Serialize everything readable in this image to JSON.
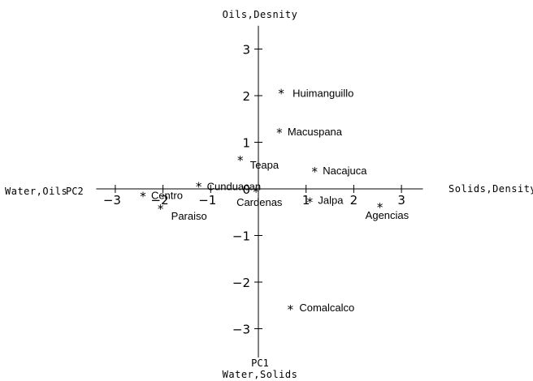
{
  "chart_data": {
    "type": "scatter",
    "xlabel": "PC2",
    "ylabel": "PC1",
    "xlim": [
      -3.4,
      3.45
    ],
    "ylim": [
      -3.6,
      3.5
    ],
    "xticks": [
      -3,
      -2,
      -1,
      1,
      2,
      3
    ],
    "xtick_labels": [
      "−3",
      "−2",
      "−1",
      "1",
      "2",
      "3"
    ],
    "yticks": [
      -3,
      -2,
      -1,
      1,
      2,
      3
    ],
    "ytick_labels": [
      "−3",
      "−2",
      "−1",
      "1",
      "2",
      "3"
    ],
    "origin_label": "0",
    "direction_labels": {
      "left": "Water,Oils",
      "right": "Solids,Density",
      "top": "Oils,Desnity",
      "bottom": "Water,Solids"
    },
    "points": [
      {
        "label": "Huimanguillo",
        "x": 0.48,
        "y": 2.06
      },
      {
        "label": "Macuspana",
        "x": 0.44,
        "y": 1.22
      },
      {
        "label": "Teapa",
        "x": -0.38,
        "y": 0.63
      },
      {
        "label": "Nacajuca",
        "x": 1.18,
        "y": 0.38
      },
      {
        "label": "Cunduacan",
        "x": -1.25,
        "y": 0.06
      },
      {
        "label": "Centro",
        "x": -2.42,
        "y": -0.15
      },
      {
        "label": "Cardenas",
        "x": -0.05,
        "y": -0.05
      },
      {
        "label": "Paraiso",
        "x": -2.05,
        "y": -0.42
      },
      {
        "label": "Jalpa",
        "x": 1.08,
        "y": -0.27
      },
      {
        "label": "Agencias",
        "x": 2.55,
        "y": -0.38
      },
      {
        "label": "Comalcalco",
        "x": 0.67,
        "y": -2.57
      }
    ]
  }
}
